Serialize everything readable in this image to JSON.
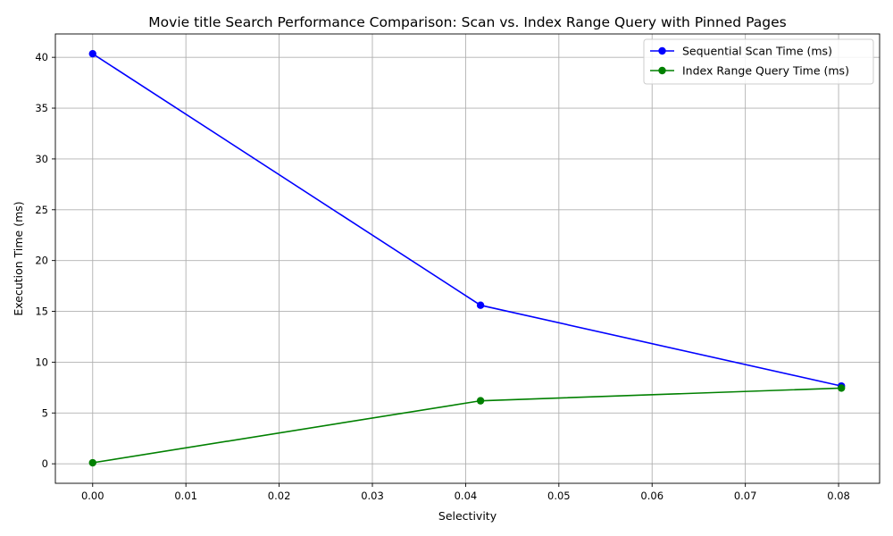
{
  "chart_data": {
    "type": "line",
    "title": "Movie title Search Performance Comparison: Scan vs. Index Range Query with Pinned Pages",
    "xlabel": "Selectivity",
    "ylabel": "Execution Time (ms)",
    "xlim": [
      -0.004,
      0.0844
    ],
    "ylim": [
      -1.92,
      42.3
    ],
    "xticks": [
      0.0,
      0.01,
      0.02,
      0.03,
      0.04,
      0.05,
      0.06,
      0.07,
      0.08
    ],
    "xtick_labels": [
      "0.00",
      "0.01",
      "0.02",
      "0.03",
      "0.04",
      "0.05",
      "0.06",
      "0.07",
      "0.08"
    ],
    "yticks": [
      0,
      5,
      10,
      15,
      20,
      25,
      30,
      35,
      40
    ],
    "ytick_labels": [
      "0",
      "5",
      "10",
      "15",
      "20",
      "25",
      "30",
      "35",
      "40"
    ],
    "grid": true,
    "legend_position": "top-right",
    "series": [
      {
        "name": "Sequential Scan Time (ms)",
        "color": "#0000ff",
        "marker": "circle",
        "x": [
          0.0,
          0.0416,
          0.0803
        ],
        "y": [
          40.35,
          15.6,
          7.65
        ]
      },
      {
        "name": "Index Range Query Time (ms)",
        "color": "#008000",
        "marker": "circle",
        "x": [
          0.0,
          0.0416,
          0.0803
        ],
        "y": [
          0.1,
          6.2,
          7.45
        ]
      }
    ]
  }
}
